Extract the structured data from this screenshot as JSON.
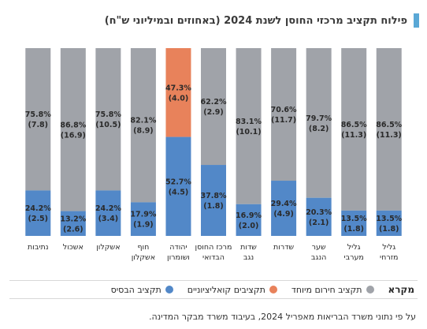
{
  "header": {
    "title": "פילוח תקציב מרכזי החוסן לשנת 2024 (באחוזים ובמיליוני ש\"ח)"
  },
  "legend": {
    "title": "מקרא",
    "items": [
      {
        "label": "תקציב חירום מיוחד",
        "color": "#a0a3a9"
      },
      {
        "label": "תקציבים קואליציוניים",
        "color": "#e8825b"
      },
      {
        "label": "תקציב הבסיס",
        "color": "#5288c8"
      }
    ]
  },
  "source": "על פי נתוני משרד הבריאות מאפריל 2024, בעיבוד משרד מבקר המדינה.",
  "colors": {
    "basis": "#5288c8",
    "coalition": "#e8825b",
    "emergency": "#a0a3a9"
  },
  "chart_data": {
    "type": "bar",
    "stacked": true,
    "orientation": "vertical",
    "ylim": [
      0,
      100
    ],
    "grid": false,
    "categories": [
      [
        "נתיבות"
      ],
      [
        "אשכול"
      ],
      [
        "אשקלון"
      ],
      [
        "חוף",
        "אשקלון"
      ],
      [
        "יהודה",
        "ושומרון"
      ],
      [
        "מרכז החוסן",
        "הבדואי"
      ],
      [
        "שדות",
        "נגב"
      ],
      [
        "שדרות"
      ],
      [
        "שער",
        "הנגב"
      ],
      [
        "גליל",
        "מערבי"
      ],
      [
        "גליל",
        "מזרחי"
      ]
    ],
    "segments": [
      {
        "category": "נתיבות",
        "bottom": {
          "pct": "24.2%",
          "amount": "(2.5)",
          "value": 24.2,
          "color_key": "basis"
        },
        "top": {
          "pct": "75.8%",
          "amount": "(7.8)",
          "value": 75.8,
          "color_key": "emergency"
        }
      },
      {
        "category": "אשכול",
        "bottom": {
          "pct": "13.2%",
          "amount": "(2.6)",
          "value": 13.2,
          "color_key": "basis"
        },
        "top": {
          "pct": "86.8%",
          "amount": "(16.9)",
          "value": 86.8,
          "color_key": "emergency"
        }
      },
      {
        "category": "אשקלון",
        "bottom": {
          "pct": "24.2%",
          "amount": "(3.4)",
          "value": 24.2,
          "color_key": "basis"
        },
        "top": {
          "pct": "75.8%",
          "amount": "(10.5)",
          "value": 75.8,
          "color_key": "emergency"
        }
      },
      {
        "category": "חוף אשקלון",
        "bottom": {
          "pct": "17.9%",
          "amount": "(1.9)",
          "value": 17.9,
          "color_key": "basis"
        },
        "top": {
          "pct": "82.1%",
          "amount": "(8.9)",
          "value": 82.1,
          "color_key": "emergency"
        }
      },
      {
        "category": "יהודה ושומרון",
        "bottom": {
          "pct": "52.7%",
          "amount": "(4.5)",
          "value": 52.7,
          "color_key": "basis"
        },
        "top": {
          "pct": "47.3%",
          "amount": "(4.0)",
          "value": 47.3,
          "color_key": "coalition"
        }
      },
      {
        "category": "מרכז החוסן הבדואי",
        "bottom": {
          "pct": "37.8%",
          "amount": "(1.8)",
          "value": 37.8,
          "color_key": "basis"
        },
        "top": {
          "pct": "62.2%",
          "amount": "(2.9)",
          "value": 62.2,
          "color_key": "emergency"
        }
      },
      {
        "category": "שדות נגב",
        "bottom": {
          "pct": "16.9%",
          "amount": "(2.0)",
          "value": 16.9,
          "color_key": "basis"
        },
        "top": {
          "pct": "83.1%",
          "amount": "(10.1)",
          "value": 83.1,
          "color_key": "emergency"
        }
      },
      {
        "category": "שדרות",
        "bottom": {
          "pct": "29.4%",
          "amount": "(4.9)",
          "value": 29.4,
          "color_key": "basis"
        },
        "top": {
          "pct": "70.6%",
          "amount": "(11.7)",
          "value": 70.6,
          "color_key": "emergency"
        }
      },
      {
        "category": "שער הנגב",
        "bottom": {
          "pct": "20.3%",
          "amount": "(2.1)",
          "value": 20.3,
          "color_key": "basis"
        },
        "top": {
          "pct": "79.7%",
          "amount": "(8.2)",
          "value": 79.7,
          "color_key": "emergency"
        }
      },
      {
        "category": "גליל מערבי",
        "bottom": {
          "pct": "13.5%",
          "amount": "(1.8)",
          "value": 13.5,
          "color_key": "basis"
        },
        "top": {
          "pct": "86.5%",
          "amount": "(11.3)",
          "value": 86.5,
          "color_key": "emergency"
        }
      },
      {
        "category": "גליל מזרחי",
        "bottom": {
          "pct": "13.5%",
          "amount": "(1.8)",
          "value": 13.5,
          "color_key": "basis"
        },
        "top": {
          "pct": "86.5%",
          "amount": "(11.3)",
          "value": 86.5,
          "color_key": "emergency"
        }
      }
    ]
  }
}
